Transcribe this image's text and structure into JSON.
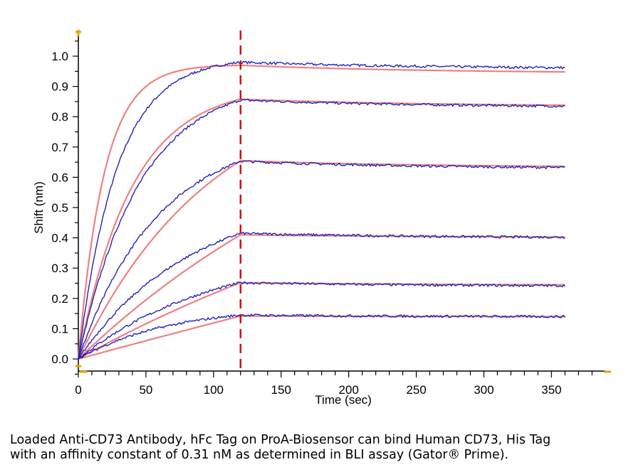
{
  "chart_data": {
    "type": "line",
    "title": "",
    "xlabel": "Time (sec)",
    "ylabel": "Shift (nm)",
    "xlim": [
      0,
      390
    ],
    "ylim": [
      -0.04,
      1.08
    ],
    "x_ticks": [
      0,
      50,
      100,
      150,
      200,
      250,
      300,
      350
    ],
    "y_ticks": [
      0.0,
      0.1,
      0.2,
      0.3,
      0.4,
      0.5,
      0.6,
      0.7,
      0.8,
      0.9,
      1.0
    ],
    "y_tick_labels": [
      "0.0",
      "0.1",
      "0.2",
      "0.3",
      "0.4",
      "0.5",
      "0.6",
      "0.7",
      "0.8",
      "0.9",
      "1.0"
    ],
    "x_tick_labels": [
      "0",
      "50",
      "100",
      "150",
      "200",
      "250",
      "300",
      "350"
    ],
    "association_end": 120,
    "dissociation_end": 360,
    "grid": false,
    "colors": {
      "measured": "#2323b4",
      "fit": "#f08080",
      "marker": "#cc1111",
      "axis_accent": "#f0a000"
    },
    "series": [
      {
        "peak": 0.98,
        "fit_peak": 0.97,
        "end": 0.962,
        "fit_end": 0.948,
        "k_meas": 0.035,
        "k_fit": 0.052
      },
      {
        "peak": 0.855,
        "fit_peak": 0.858,
        "end": 0.835,
        "fit_end": 0.838,
        "k_meas": 0.022,
        "k_fit": 0.025
      },
      {
        "peak": 0.653,
        "fit_peak": 0.655,
        "end": 0.632,
        "fit_end": 0.636,
        "k_meas": 0.017,
        "k_fit": 0.01
      },
      {
        "peak": 0.415,
        "fit_peak": 0.41,
        "end": 0.402,
        "fit_end": 0.403,
        "k_meas": 0.012,
        "k_fit": 0.004
      },
      {
        "peak": 0.252,
        "fit_peak": 0.252,
        "end": 0.242,
        "fit_end": 0.245,
        "k_meas": 0.01,
        "k_fit": 0.003
      },
      {
        "peak": 0.145,
        "fit_peak": 0.142,
        "end": 0.14,
        "fit_end": 0.14,
        "k_meas": 0.015,
        "k_fit": 0.0005
      }
    ]
  },
  "caption": {
    "line1": "Loaded Anti-CD73 Antibody, hFc Tag on ProA-Biosensor can bind Human CD73, His Tag",
    "line2": "with an affinity constant of 0.31 nM as determined in BLI assay (Gator® Prime)."
  }
}
